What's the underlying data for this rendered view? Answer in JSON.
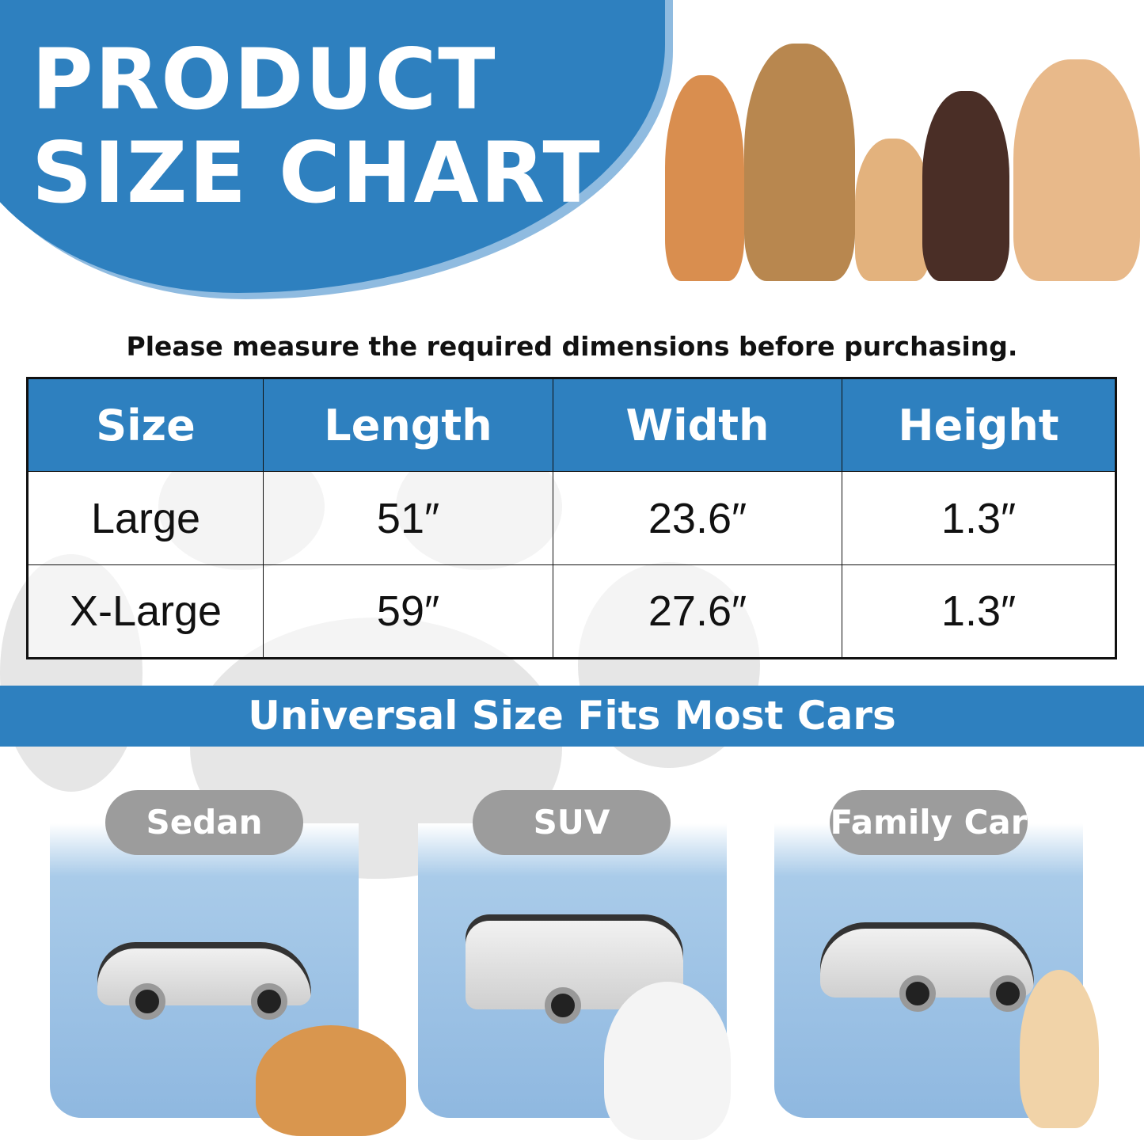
{
  "header": {
    "title_line1": "PRODUCT",
    "title_line2": "SIZE CHART",
    "accent_color": "#2e80bf"
  },
  "note": "Please measure the required dimensions before purchasing.",
  "table": {
    "headers": [
      "Size",
      "Length",
      "Width",
      "Height"
    ],
    "rows": [
      [
        "Large",
        "51″",
        "23.6″",
        "1.3″"
      ],
      [
        "X-Large",
        "59″",
        "27.6″",
        "1.3″"
      ]
    ]
  },
  "banner": "Universal Size Fits Most Cars",
  "cars": [
    {
      "label": "Sedan"
    },
    {
      "label": "SUV"
    },
    {
      "label": "Family Car"
    }
  ]
}
